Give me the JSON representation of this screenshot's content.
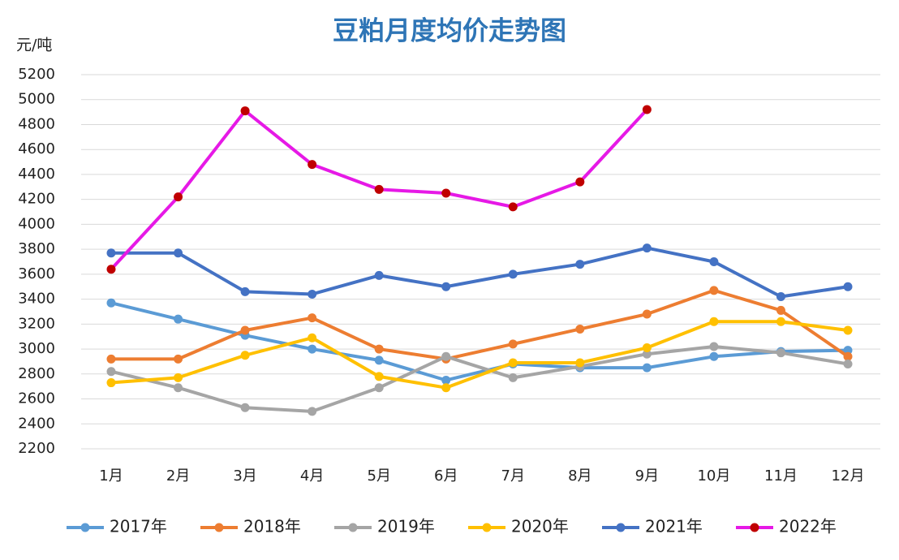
{
  "chart_data": {
    "type": "line",
    "title": "豆粕月度均价走势图",
    "y_label": "元/吨",
    "categories": [
      "1月",
      "2月",
      "3月",
      "4月",
      "5月",
      "6月",
      "7月",
      "8月",
      "9月",
      "10月",
      "11月",
      "12月"
    ],
    "ylim": [
      2200,
      5200
    ],
    "yticks": [
      2200,
      2400,
      2600,
      2800,
      3000,
      3200,
      3400,
      3600,
      3800,
      4000,
      4200,
      4400,
      4600,
      4800,
      5000,
      5200
    ],
    "grid": true,
    "legend": "bottom",
    "series": [
      {
        "name": "2017年",
        "color": "#5b9bd5",
        "values": [
          3370,
          3240,
          3110,
          3000,
          2910,
          2750,
          2880,
          2850,
          2850,
          2940,
          2980,
          2990
        ]
      },
      {
        "name": "2018年",
        "color": "#ed7d31",
        "values": [
          2920,
          2920,
          3150,
          3250,
          3000,
          2920,
          3040,
          3160,
          3280,
          3470,
          3310,
          2940
        ]
      },
      {
        "name": "2019年",
        "color": "#a5a5a5",
        "values": [
          2820,
          2690,
          2530,
          2500,
          2690,
          2940,
          2770,
          2860,
          2960,
          3020,
          2970,
          2880
        ]
      },
      {
        "name": "2020年",
        "color": "#ffc000",
        "values": [
          2730,
          2770,
          2950,
          3090,
          2780,
          2690,
          2890,
          2890,
          3010,
          3220,
          3220,
          3150
        ]
      },
      {
        "name": "2021年",
        "color": "#4472c4",
        "values": [
          3770,
          3770,
          3460,
          3440,
          3590,
          3500,
          3600,
          3680,
          3810,
          3700,
          3420,
          3500
        ]
      },
      {
        "name": "2022年",
        "color": "#e619e6",
        "marker_color": "#c00000",
        "values": [
          3640,
          4220,
          4910,
          4480,
          4280,
          4250,
          4140,
          4340,
          4920,
          null,
          null,
          null
        ]
      }
    ]
  }
}
